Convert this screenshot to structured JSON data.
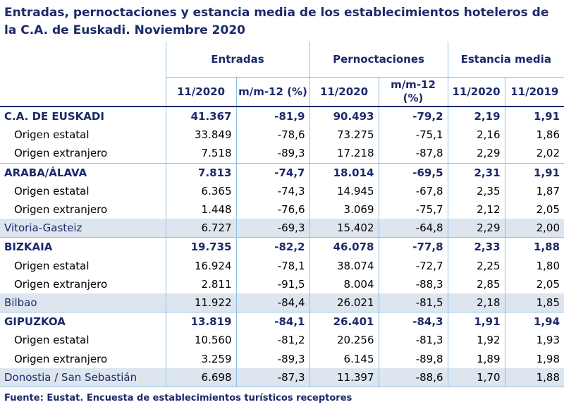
{
  "title": "Entradas, pernoctaciones y estancia media de los establecimientos hoteleros de la C.A. de Euskadi.  Noviembre 2020",
  "headers": {
    "group1": "Entradas",
    "group2": "Pernoctaciones",
    "group3": "Estancia media",
    "sub": [
      "11/2020",
      "m/m-12 (%)",
      "11/2020",
      "m/m-12 (%)",
      "11/2020",
      "11/2019"
    ]
  },
  "rows": [
    {
      "label": "C.A. DE EUSKADI",
      "style": "b",
      "values": [
        "41.367",
        "-81,9",
        "90.493",
        "-79,2",
        "2,19",
        "1,91"
      ]
    },
    {
      "label": "Origen estatal",
      "style": "sub",
      "values": [
        "33.849",
        "-78,6",
        "73.275",
        "-75,1",
        "2,16",
        "1,86"
      ]
    },
    {
      "label": "Origen extranjero",
      "style": "sub",
      "values": [
        "7.518",
        "-89,3",
        "17.218",
        "-87,8",
        "2,29",
        "2,02"
      ]
    },
    {
      "label": "ARABA/ÁLAVA",
      "style": "b",
      "values": [
        "7.813",
        "-74,7",
        "18.014",
        "-69,5",
        "2,31",
        "1,91"
      ]
    },
    {
      "label": "Origen estatal",
      "style": "sub",
      "values": [
        "6.365",
        "-74,3",
        "14.945",
        "-67,8",
        "2,35",
        "1,87"
      ]
    },
    {
      "label": "Origen extranjero",
      "style": "sub",
      "values": [
        "1.448",
        "-76,6",
        "3.069",
        "-75,7",
        "2,12",
        "2,05"
      ]
    },
    {
      "label": "Vitoria-Gasteiz",
      "style": "city",
      "values": [
        "6.727",
        "-69,3",
        "15.402",
        "-64,8",
        "2,29",
        "2,00"
      ]
    },
    {
      "label": "BIZKAIA",
      "style": "b",
      "values": [
        "19.735",
        "-82,2",
        "46.078",
        "-77,8",
        "2,33",
        "1,88"
      ]
    },
    {
      "label": "Origen estatal",
      "style": "sub",
      "values": [
        "16.924",
        "-78,1",
        "38.074",
        "-72,7",
        "2,25",
        "1,80"
      ]
    },
    {
      "label": "Origen extranjero",
      "style": "sub",
      "values": [
        "2.811",
        "-91,5",
        "8.004",
        "-88,3",
        "2,85",
        "2,05"
      ]
    },
    {
      "label": "Bilbao",
      "style": "city",
      "values": [
        "11.922",
        "-84,4",
        "26.021",
        "-81,5",
        "2,18",
        "1,85"
      ]
    },
    {
      "label": "GIPUZKOA",
      "style": "b",
      "values": [
        "13.819",
        "-84,1",
        "26.401",
        "-84,3",
        "1,91",
        "1,94"
      ]
    },
    {
      "label": "Origen estatal",
      "style": "sub",
      "values": [
        "10.560",
        "-81,2",
        "20.256",
        "-81,3",
        "1,92",
        "1,93"
      ]
    },
    {
      "label": "Origen extranjero",
      "style": "sub",
      "values": [
        "3.259",
        "-89,3",
        "6.145",
        "-89,8",
        "1,89",
        "1,98"
      ]
    },
    {
      "label": "Donostia / San Sebastián",
      "style": "city",
      "values": [
        "6.698",
        "-87,3",
        "11.397",
        "-88,6",
        "1,70",
        "1,88"
      ]
    }
  ],
  "source": "Fuente: Eustat. Encuesta de establecimientos turísticos receptores"
}
